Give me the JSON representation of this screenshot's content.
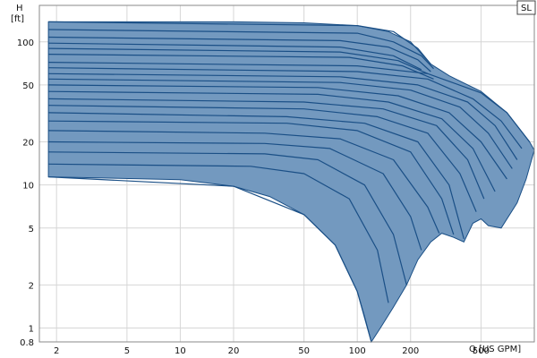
{
  "chart_data": {
    "type": "area",
    "title": "",
    "xlabel": "Q [US GPM]",
    "ylabel_line1": "H",
    "ylabel_line2": "[ft]",
    "x_scale": "log",
    "y_scale": "log",
    "xlim": [
      1.6,
      1000
    ],
    "ylim": [
      0.8,
      180
    ],
    "x_ticks": [
      2,
      5,
      10,
      20,
      50,
      100,
      200,
      500
    ],
    "x_tick_labels": [
      "2",
      "5",
      "10",
      "20",
      "50",
      "100",
      "200",
      "500"
    ],
    "y_ticks": [
      0.8,
      1,
      2,
      5,
      10,
      20,
      50,
      100
    ],
    "y_tick_labels": [
      "0.8",
      "1",
      "2",
      "5",
      "10",
      "20",
      "50",
      "100"
    ],
    "grid": true,
    "legend_badge": "SL",
    "colors": {
      "fill": "#7399bf",
      "curve": "#1a4f86",
      "grid": "#d6d6d6"
    },
    "envelope": [
      {
        "x": 1.8,
        "y": 11.4
      },
      {
        "x": 10,
        "y": 10.9
      },
      {
        "x": 20,
        "y": 9.8
      },
      {
        "x": 32,
        "y": 8.3
      },
      {
        "x": 50,
        "y": 6.2
      },
      {
        "x": 75,
        "y": 3.8
      },
      {
        "x": 100,
        "y": 1.8
      },
      {
        "x": 110,
        "y": 1.2
      },
      {
        "x": 120,
        "y": 0.8
      },
      {
        "x": 135,
        "y": 1.0
      },
      {
        "x": 160,
        "y": 1.4
      },
      {
        "x": 190,
        "y": 2.0
      },
      {
        "x": 220,
        "y": 3.0
      },
      {
        "x": 260,
        "y": 4.0
      },
      {
        "x": 300,
        "y": 4.6
      },
      {
        "x": 350,
        "y": 4.3
      },
      {
        "x": 400,
        "y": 4.0
      },
      {
        "x": 450,
        "y": 5.4
      },
      {
        "x": 500,
        "y": 5.8
      },
      {
        "x": 550,
        "y": 5.2
      },
      {
        "x": 650,
        "y": 5.0
      },
      {
        "x": 800,
        "y": 7.5
      },
      {
        "x": 900,
        "y": 11.0
      },
      {
        "x": 950,
        "y": 14.0
      },
      {
        "x": 1000,
        "y": 17.5
      },
      {
        "x": 940,
        "y": 20.0
      },
      {
        "x": 700,
        "y": 32.0
      },
      {
        "x": 500,
        "y": 45.0
      },
      {
        "x": 330,
        "y": 58.0
      },
      {
        "x": 260,
        "y": 70.0
      },
      {
        "x": 200,
        "y": 100.0
      },
      {
        "x": 150,
        "y": 118.0
      },
      {
        "x": 100,
        "y": 130.0
      },
      {
        "x": 50,
        "y": 136.0
      },
      {
        "x": 20,
        "y": 138.0
      },
      {
        "x": 1.8,
        "y": 138.0
      }
    ],
    "series": [
      {
        "points": [
          {
            "x": 1.8,
            "y": 138
          },
          {
            "x": 100,
            "y": 130
          },
          {
            "x": 160,
            "y": 118
          },
          {
            "x": 220,
            "y": 90
          },
          {
            "x": 260,
            "y": 70
          }
        ]
      },
      {
        "points": [
          {
            "x": 1.8,
            "y": 122
          },
          {
            "x": 100,
            "y": 115
          },
          {
            "x": 160,
            "y": 100
          },
          {
            "x": 230,
            "y": 80
          },
          {
            "x": 270,
            "y": 65
          }
        ]
      },
      {
        "points": [
          {
            "x": 1.8,
            "y": 108
          },
          {
            "x": 80,
            "y": 102
          },
          {
            "x": 150,
            "y": 92
          },
          {
            "x": 220,
            "y": 75
          },
          {
            "x": 260,
            "y": 62
          }
        ]
      },
      {
        "points": [
          {
            "x": 1.8,
            "y": 98
          },
          {
            "x": 80,
            "y": 92
          },
          {
            "x": 160,
            "y": 80
          },
          {
            "x": 230,
            "y": 64
          }
        ]
      },
      {
        "points": [
          {
            "x": 1.8,
            "y": 90
          },
          {
            "x": 80,
            "y": 85
          },
          {
            "x": 170,
            "y": 74
          },
          {
            "x": 250,
            "y": 60
          }
        ]
      },
      {
        "points": [
          {
            "x": 1.8,
            "y": 82
          },
          {
            "x": 90,
            "y": 78
          },
          {
            "x": 180,
            "y": 68
          },
          {
            "x": 270,
            "y": 55
          }
        ]
      },
      {
        "points": [
          {
            "x": 1.8,
            "y": 72
          },
          {
            "x": 100,
            "y": 68
          },
          {
            "x": 250,
            "y": 60
          },
          {
            "x": 500,
            "y": 44
          },
          {
            "x": 700,
            "y": 32
          },
          {
            "x": 940,
            "y": 20
          }
        ]
      },
      {
        "points": [
          {
            "x": 1.8,
            "y": 66
          },
          {
            "x": 100,
            "y": 62
          },
          {
            "x": 250,
            "y": 55
          },
          {
            "x": 450,
            "y": 40
          },
          {
            "x": 650,
            "y": 28
          },
          {
            "x": 850,
            "y": 18
          }
        ]
      },
      {
        "points": [
          {
            "x": 1.8,
            "y": 60
          },
          {
            "x": 80,
            "y": 57
          },
          {
            "x": 220,
            "y": 50
          },
          {
            "x": 420,
            "y": 38
          },
          {
            "x": 600,
            "y": 26
          },
          {
            "x": 800,
            "y": 15
          }
        ]
      },
      {
        "points": [
          {
            "x": 1.8,
            "y": 55
          },
          {
            "x": 80,
            "y": 52
          },
          {
            "x": 200,
            "y": 46
          },
          {
            "x": 380,
            "y": 35
          },
          {
            "x": 550,
            "y": 23
          },
          {
            "x": 750,
            "y": 13
          }
        ]
      },
      {
        "points": [
          {
            "x": 1.8,
            "y": 50
          },
          {
            "x": 60,
            "y": 48
          },
          {
            "x": 170,
            "y": 42
          },
          {
            "x": 330,
            "y": 32
          },
          {
            "x": 500,
            "y": 20
          },
          {
            "x": 700,
            "y": 11
          }
        ]
      },
      {
        "points": [
          {
            "x": 1.8,
            "y": 45
          },
          {
            "x": 60,
            "y": 43
          },
          {
            "x": 150,
            "y": 38
          },
          {
            "x": 300,
            "y": 29
          },
          {
            "x": 450,
            "y": 18
          },
          {
            "x": 600,
            "y": 9
          }
        ]
      },
      {
        "points": [
          {
            "x": 1.8,
            "y": 40
          },
          {
            "x": 50,
            "y": 38
          },
          {
            "x": 140,
            "y": 34
          },
          {
            "x": 280,
            "y": 26
          },
          {
            "x": 420,
            "y": 15
          },
          {
            "x": 520,
            "y": 8
          }
        ]
      },
      {
        "points": [
          {
            "x": 1.8,
            "y": 36
          },
          {
            "x": 50,
            "y": 34
          },
          {
            "x": 130,
            "y": 30
          },
          {
            "x": 250,
            "y": 23
          },
          {
            "x": 380,
            "y": 12
          },
          {
            "x": 470,
            "y": 6.5
          }
        ]
      },
      {
        "points": [
          {
            "x": 1.8,
            "y": 32
          },
          {
            "x": 40,
            "y": 30
          },
          {
            "x": 110,
            "y": 27
          },
          {
            "x": 220,
            "y": 20
          },
          {
            "x": 330,
            "y": 10
          },
          {
            "x": 400,
            "y": 4.2
          }
        ]
      },
      {
        "points": [
          {
            "x": 1.8,
            "y": 28
          },
          {
            "x": 40,
            "y": 27
          },
          {
            "x": 100,
            "y": 24
          },
          {
            "x": 200,
            "y": 17
          },
          {
            "x": 300,
            "y": 8
          },
          {
            "x": 350,
            "y": 4.5
          }
        ]
      },
      {
        "points": [
          {
            "x": 1.8,
            "y": 24
          },
          {
            "x": 30,
            "y": 23
          },
          {
            "x": 80,
            "y": 21
          },
          {
            "x": 160,
            "y": 15
          },
          {
            "x": 250,
            "y": 7
          },
          {
            "x": 290,
            "y": 4.6
          }
        ]
      },
      {
        "points": [
          {
            "x": 1.8,
            "y": 20
          },
          {
            "x": 30,
            "y": 19.5
          },
          {
            "x": 70,
            "y": 18
          },
          {
            "x": 140,
            "y": 12
          },
          {
            "x": 200,
            "y": 6
          },
          {
            "x": 230,
            "y": 3.5
          }
        ]
      },
      {
        "points": [
          {
            "x": 1.8,
            "y": 17
          },
          {
            "x": 30,
            "y": 16.5
          },
          {
            "x": 60,
            "y": 15
          },
          {
            "x": 110,
            "y": 10
          },
          {
            "x": 160,
            "y": 4.5
          },
          {
            "x": 190,
            "y": 2.0
          }
        ]
      },
      {
        "points": [
          {
            "x": 1.8,
            "y": 14
          },
          {
            "x": 25,
            "y": 13.5
          },
          {
            "x": 50,
            "y": 12
          },
          {
            "x": 90,
            "y": 8
          },
          {
            "x": 130,
            "y": 3.5
          },
          {
            "x": 150,
            "y": 1.5
          }
        ]
      },
      {
        "points": [
          {
            "x": 1.8,
            "y": 11.4
          },
          {
            "x": 20,
            "y": 9.8
          },
          {
            "x": 50,
            "y": 6.2
          },
          {
            "x": 75,
            "y": 3.8
          },
          {
            "x": 100,
            "y": 1.8
          },
          {
            "x": 120,
            "y": 0.8
          }
        ]
      }
    ]
  }
}
